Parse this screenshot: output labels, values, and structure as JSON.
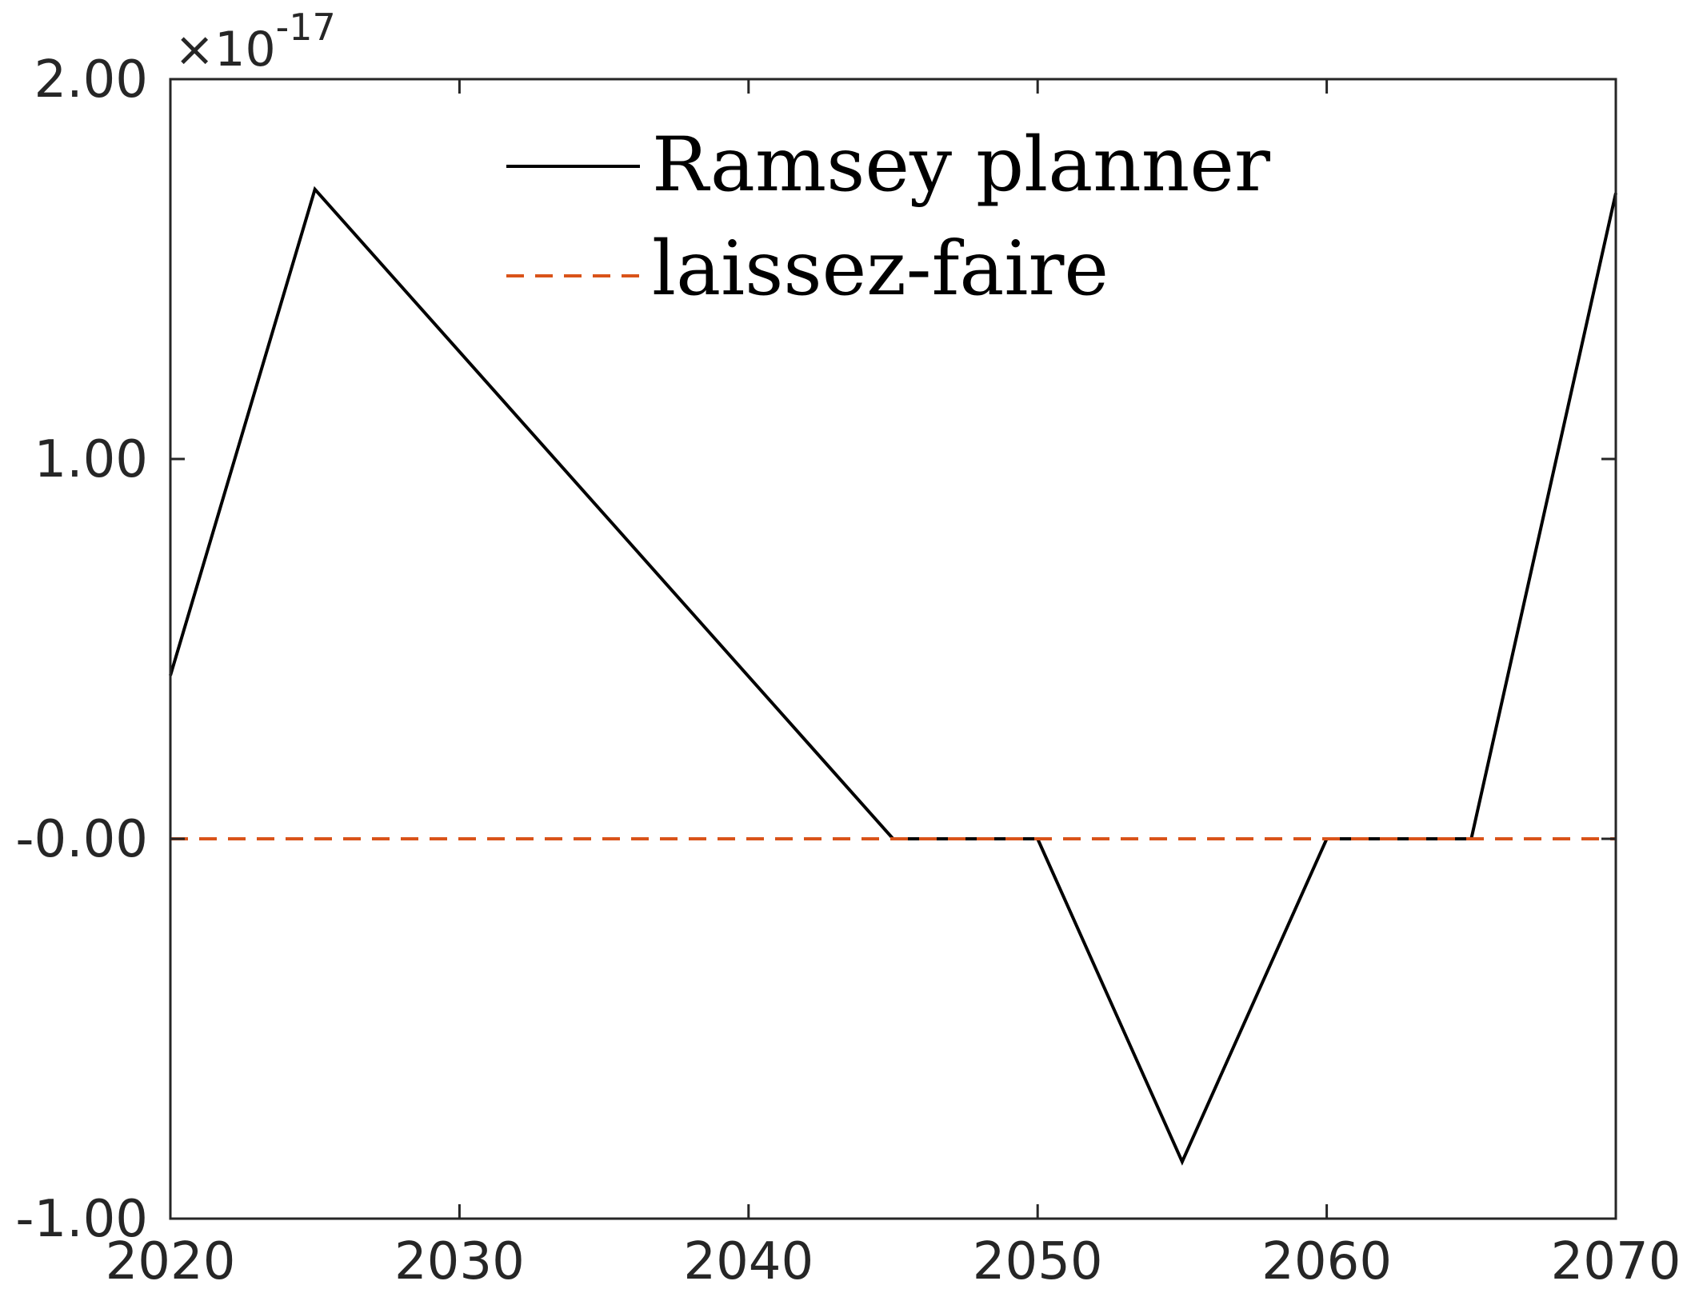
{
  "chart_data": {
    "type": "line",
    "title": "",
    "xlabel": "",
    "ylabel": "",
    "y_exponent_label": {
      "base": "×10",
      "power": "-17"
    },
    "xlim": [
      2020,
      2070
    ],
    "ylim": [
      -1.0,
      2.0
    ],
    "xticks": [
      2020,
      2030,
      2040,
      2050,
      2060,
      2070
    ],
    "xtick_labels": [
      "2020",
      "2030",
      "2040",
      "2050",
      "2060",
      "2070"
    ],
    "yticks": [
      -1.0,
      0.0,
      1.0,
      2.0
    ],
    "ytick_labels": [
      "-1.00",
      "-0.00",
      "1.00",
      "2.00"
    ],
    "grid": false,
    "legend_position": "top-center",
    "x": [
      2020,
      2025,
      2045,
      2050,
      2055,
      2060,
      2065,
      2070
    ],
    "series": [
      {
        "name": "Ramsey planner",
        "color": "#000000",
        "style": "solid",
        "values": [
          0.43,
          1.71,
          0.0,
          0.0,
          -0.85,
          0.0,
          0.0,
          1.7
        ]
      },
      {
        "name": "laissez-faire",
        "color": "#d95319",
        "style": "dashed",
        "values": [
          0.0,
          0.0,
          0.0,
          0.0,
          0.0,
          0.0,
          0.0,
          0.0
        ]
      }
    ]
  }
}
